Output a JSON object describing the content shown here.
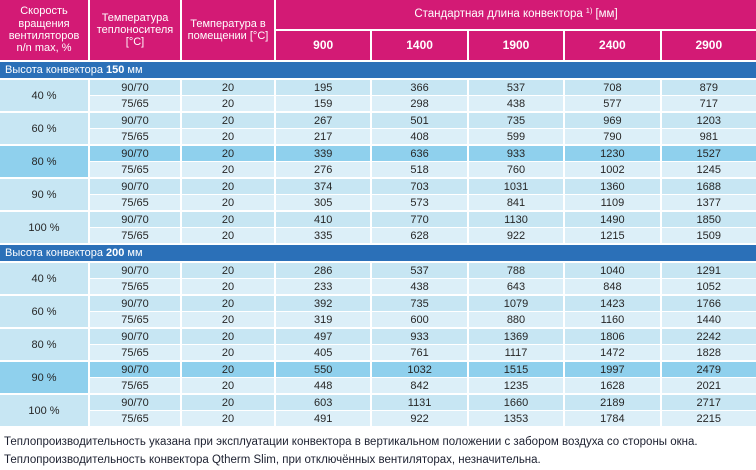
{
  "colors": {
    "header_pink": "#D31A75",
    "section_blue": "#2B70B8",
    "row_medium": "#C7E6F3",
    "row_light": "#DCEFF8",
    "row_highlight": "#8FD0ED"
  },
  "header": {
    "speed_label": "Скорость\nвращения\nвентиляторов\nn/n max, %",
    "supply_label": "Температура\nтеплоносителя\n[°C]",
    "room_label": "Температура в\nпомещении [°C]",
    "length_title": "Стандартная длина  конвектора",
    "length_sup": "1)",
    "length_unit": "[мм]",
    "lengths": [
      "900",
      "1400",
      "1900",
      "2400",
      "2900"
    ]
  },
  "sections": [
    {
      "title_prefix": "Высота конвектора",
      "title_value": "150",
      "title_unit": "мм",
      "groups": [
        {
          "speed": "40 %",
          "highlight": false,
          "rows": [
            {
              "supply": "90/70",
              "room": "20",
              "highlight": false,
              "values": [
                195,
                366,
                537,
                708,
                879
              ]
            },
            {
              "supply": "75/65",
              "room": "20",
              "highlight": false,
              "values": [
                159,
                298,
                438,
                577,
                717
              ]
            }
          ]
        },
        {
          "speed": "60 %",
          "highlight": false,
          "rows": [
            {
              "supply": "90/70",
              "room": "20",
              "highlight": false,
              "values": [
                267,
                501,
                735,
                969,
                1203
              ]
            },
            {
              "supply": "75/65",
              "room": "20",
              "highlight": false,
              "values": [
                217,
                408,
                599,
                790,
                981
              ]
            }
          ]
        },
        {
          "speed": "80 %",
          "highlight": true,
          "rows": [
            {
              "supply": "90/70",
              "room": "20",
              "highlight": true,
              "values": [
                339,
                636,
                933,
                1230,
                1527
              ]
            },
            {
              "supply": "75/65",
              "room": "20",
              "highlight": false,
              "values": [
                276,
                518,
                760,
                1002,
                1245
              ]
            }
          ]
        },
        {
          "speed": "90 %",
          "highlight": false,
          "rows": [
            {
              "supply": "90/70",
              "room": "20",
              "highlight": false,
              "values": [
                374,
                703,
                1031,
                1360,
                1688
              ]
            },
            {
              "supply": "75/65",
              "room": "20",
              "highlight": false,
              "values": [
                305,
                573,
                841,
                1109,
                1377
              ]
            }
          ]
        },
        {
          "speed": "100 %",
          "highlight": false,
          "rows": [
            {
              "supply": "90/70",
              "room": "20",
              "highlight": false,
              "values": [
                410,
                770,
                1130,
                1490,
                1850
              ]
            },
            {
              "supply": "75/65",
              "room": "20",
              "highlight": false,
              "values": [
                335,
                628,
                922,
                1215,
                1509
              ]
            }
          ]
        }
      ]
    },
    {
      "title_prefix": "Высота конвектора",
      "title_value": "200",
      "title_unit": "мм",
      "groups": [
        {
          "speed": "40 %",
          "highlight": false,
          "rows": [
            {
              "supply": "90/70",
              "room": "20",
              "highlight": false,
              "values": [
                286,
                537,
                788,
                1040,
                1291
              ]
            },
            {
              "supply": "75/65",
              "room": "20",
              "highlight": false,
              "values": [
                233,
                438,
                643,
                848,
                1052
              ]
            }
          ]
        },
        {
          "speed": "60 %",
          "highlight": false,
          "rows": [
            {
              "supply": "90/70",
              "room": "20",
              "highlight": false,
              "values": [
                392,
                735,
                1079,
                1423,
                1766
              ]
            },
            {
              "supply": "75/65",
              "room": "20",
              "highlight": false,
              "values": [
                319,
                600,
                880,
                1160,
                1440
              ]
            }
          ]
        },
        {
          "speed": "80 %",
          "highlight": false,
          "rows": [
            {
              "supply": "90/70",
              "room": "20",
              "highlight": false,
              "values": [
                497,
                933,
                1369,
                1806,
                2242
              ]
            },
            {
              "supply": "75/65",
              "room": "20",
              "highlight": false,
              "values": [
                405,
                761,
                1117,
                1472,
                1828
              ]
            }
          ]
        },
        {
          "speed": "90 %",
          "highlight": true,
          "rows": [
            {
              "supply": "90/70",
              "room": "20",
              "highlight": true,
              "values": [
                550,
                1032,
                1515,
                1997,
                2479
              ]
            },
            {
              "supply": "75/65",
              "room": "20",
              "highlight": false,
              "values": [
                448,
                842,
                1235,
                1628,
                2021
              ]
            }
          ]
        },
        {
          "speed": "100 %",
          "highlight": false,
          "rows": [
            {
              "supply": "90/70",
              "room": "20",
              "highlight": false,
              "values": [
                603,
                1131,
                1660,
                2189,
                2717
              ]
            },
            {
              "supply": "75/65",
              "room": "20",
              "highlight": false,
              "values": [
                491,
                922,
                1353,
                1784,
                2215
              ]
            }
          ]
        }
      ]
    }
  ],
  "footnotes": [
    "Теплопроизводительность указана при эксплуатации конвектора в вертикальном положении с забором воздуха со стороны окна.",
    "Теплопроизводительность конвектора Qtherm Slim, при отключённых вентиляторах, незначительна."
  ]
}
